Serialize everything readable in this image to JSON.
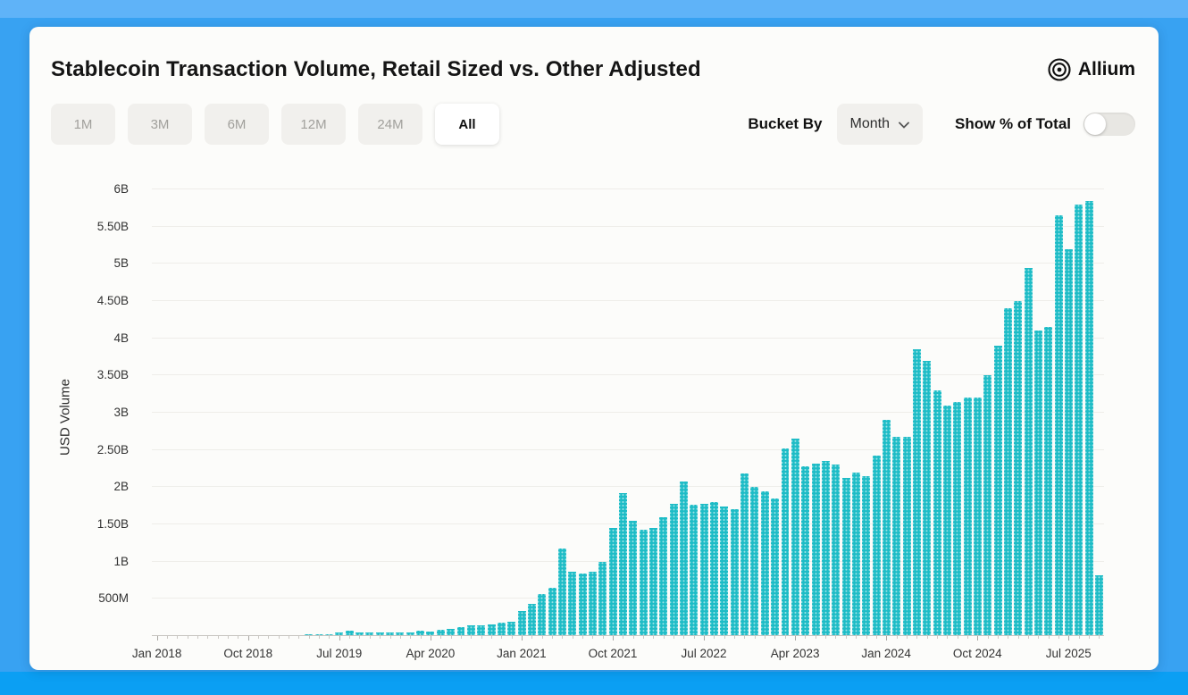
{
  "header": {
    "title": "Stablecoin Transaction Volume, Retail Sized vs. Other Adjusted",
    "brand": "Allium"
  },
  "controls": {
    "ranges": [
      {
        "label": "1M",
        "active": false
      },
      {
        "label": "3M",
        "active": false
      },
      {
        "label": "6M",
        "active": false
      },
      {
        "label": "12M",
        "active": false
      },
      {
        "label": "24M",
        "active": false
      },
      {
        "label": "All",
        "active": true
      }
    ],
    "bucket_by_label": "Bucket By",
    "bucket_value": "Month",
    "show_pct_label": "Show % of Total",
    "show_pct_on": false
  },
  "chart_data": {
    "type": "bar",
    "title": "Stablecoin Transaction Volume, Retail Sized vs. Other Adjusted",
    "ylabel": "USD Volume",
    "xlabel": "",
    "unit": "USD millions per month",
    "bucket": "Month",
    "bar_color": "#1dbcc6",
    "grid": true,
    "legend": "none",
    "y_max_musd": 6000,
    "y_ticks": [
      {
        "value_musd": 500,
        "label": "500M"
      },
      {
        "value_musd": 1000,
        "label": "1B"
      },
      {
        "value_musd": 1500,
        "label": "1.50B"
      },
      {
        "value_musd": 2000,
        "label": "2B"
      },
      {
        "value_musd": 2500,
        "label": "2.50B"
      },
      {
        "value_musd": 3000,
        "label": "3B"
      },
      {
        "value_musd": 3500,
        "label": "3.50B"
      },
      {
        "value_musd": 4000,
        "label": "4B"
      },
      {
        "value_musd": 4500,
        "label": "4.50B"
      },
      {
        "value_musd": 5000,
        "label": "5B"
      },
      {
        "value_musd": 5500,
        "label": "5.50B"
      },
      {
        "value_musd": 6000,
        "label": "6B"
      }
    ],
    "start_month": "Jan 2018",
    "x_tick_labels": [
      "Jan 2018",
      "Oct 2018",
      "Jul 2019",
      "Apr 2020",
      "Jan 2021",
      "Oct 2021",
      "Jul 2022",
      "Apr 2023",
      "Jan 2024",
      "Oct 2024",
      "Jul 2025"
    ],
    "x_tick_indices": [
      0,
      9,
      18,
      27,
      36,
      45,
      54,
      63,
      72,
      81,
      90
    ],
    "values_musd": [
      8,
      9,
      10,
      9,
      10,
      9,
      9,
      9,
      10,
      11,
      12,
      13,
      14,
      15,
      17,
      20,
      24,
      30,
      45,
      68,
      52,
      46,
      50,
      44,
      46,
      52,
      72,
      66,
      82,
      100,
      118,
      148,
      140,
      158,
      175,
      195,
      340,
      430,
      560,
      650,
      1180,
      870,
      840,
      860,
      1000,
      1450,
      1920,
      1550,
      1430,
      1450,
      1600,
      1780,
      2080,
      1760,
      1780,
      1800,
      1740,
      1700,
      2180,
      2000,
      1950,
      1850,
      2520,
      2650,
      2280,
      2320,
      2350,
      2300,
      2120,
      2200,
      2150,
      2420,
      2900,
      2680,
      2680,
      3850,
      3700,
      3300,
      3100,
      3150,
      3200,
      3200,
      3500,
      3900,
      4400,
      4500,
      4950,
      4100,
      4150,
      5650,
      5200,
      5800,
      5850,
      820
    ]
  }
}
